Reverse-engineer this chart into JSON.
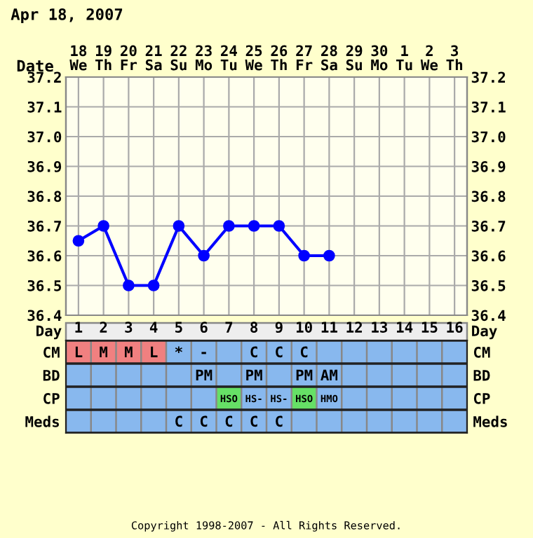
{
  "chart_data": [
    {
      "type": "line",
      "title": "Apr 18, 2007",
      "xlabel": "Date",
      "categories": [
        "18\nWe",
        "19\nTh",
        "20\nFr",
        "21\nSa",
        "22\nSu",
        "23\nMo",
        "24\nTu",
        "25\nWe",
        "26\nTh",
        "27\nFr",
        "28\nSa",
        "29\nSu",
        "30\nMo",
        "1\nTu",
        "2\nWe",
        "3\nTh"
      ],
      "series": [
        {
          "color": "#0000ff",
          "values": [
            36.65,
            36.7,
            36.5,
            36.5,
            36.7,
            36.6,
            36.7,
            36.7,
            36.7,
            36.6,
            36.6,
            null,
            null,
            null,
            null,
            null
          ]
        }
      ],
      "ylim": [
        36.4,
        37.2
      ],
      "yticks": [
        {
          "value": 36.4,
          "label": "36.4"
        },
        {
          "value": 36.5,
          "label": "36.5"
        },
        {
          "value": 36.6,
          "label": "36.6"
        },
        {
          "value": 36.7,
          "label": "36.7"
        },
        {
          "value": 36.8,
          "label": "36.8"
        },
        {
          "value": 36.9,
          "label": "36.9"
        },
        {
          "value": 37.0,
          "label": "37.0"
        },
        {
          "value": 37.1,
          "label": "37.1"
        },
        {
          "value": 37.2,
          "label": "37.2"
        }
      ],
      "y2lim": [
        36.4,
        37.2
      ],
      "y2ticks": [
        {
          "value": 36.4,
          "label": "36.4"
        },
        {
          "value": 36.5,
          "label": "36.5"
        },
        {
          "value": 36.6,
          "label": "36.6"
        },
        {
          "value": 36.7,
          "label": "36.7"
        },
        {
          "value": 36.8,
          "label": "36.8"
        },
        {
          "value": 36.9,
          "label": "36.9"
        },
        {
          "value": 37.0,
          "label": "37.0"
        },
        {
          "value": 37.1,
          "label": "37.1"
        },
        {
          "value": 37.2,
          "label": "37.2"
        }
      ],
      "grid": true,
      "marker": "circle",
      "line_style": "solid",
      "legend": false
    },
    {
      "type": "heatmap",
      "xlabel": "Day",
      "categories": [
        "1",
        "2",
        "3",
        "4",
        "5",
        "6",
        "7",
        "8",
        "9",
        "10",
        "11",
        "12",
        "13",
        "14",
        "15",
        "16"
      ],
      "y_categories": [
        "CM",
        "BD",
        "CP",
        "Meds"
      ],
      "y2_categories": [
        "CM",
        "BD",
        "CP",
        "Meds"
      ],
      "colors": [
        [
          "#f08080",
          "#f08080",
          "#f08080",
          "#f08080",
          "#88b8ee",
          "#88b8ee",
          "#88b8ee",
          "#88b8ee",
          "#88b8ee",
          "#88b8ee",
          "#88b8ee",
          "#88b8ee",
          "#88b8ee",
          "#88b8ee",
          "#88b8ee",
          "#88b8ee"
        ],
        [
          "#88b8ee",
          "#88b8ee",
          "#88b8ee",
          "#88b8ee",
          "#88b8ee",
          "#88b8ee",
          "#88b8ee",
          "#88b8ee",
          "#88b8ee",
          "#88b8ee",
          "#88b8ee",
          "#88b8ee",
          "#88b8ee",
          "#88b8ee",
          "#88b8ee",
          "#88b8ee"
        ],
        [
          "#88b8ee",
          "#88b8ee",
          "#88b8ee",
          "#88b8ee",
          "#88b8ee",
          "#88b8ee",
          "#66e066",
          "#88b8ee",
          "#88b8ee",
          "#66e066",
          "#88b8ee",
          "#88b8ee",
          "#88b8ee",
          "#88b8ee",
          "#88b8ee",
          "#88b8ee"
        ],
        [
          "#88b8ee",
          "#88b8ee",
          "#88b8ee",
          "#88b8ee",
          "#88b8ee",
          "#88b8ee",
          "#88b8ee",
          "#88b8ee",
          "#88b8ee",
          "#88b8ee",
          "#88b8ee",
          "#88b8ee",
          "#88b8ee",
          "#88b8ee",
          "#88b8ee",
          "#88b8ee"
        ]
      ],
      "cells": [
        [
          null,
          null,
          null,
          null,
          null,
          null,
          null,
          null,
          null,
          null,
          null,
          null,
          null,
          null,
          null,
          null
        ],
        [
          null,
          null,
          null,
          null,
          null,
          null,
          null,
          null,
          null,
          null,
          null,
          null,
          null,
          null,
          null,
          null
        ],
        [
          null,
          null,
          null,
          null,
          null,
          null,
          null,
          null,
          null,
          null,
          null,
          null,
          null,
          null,
          null,
          null
        ],
        [
          null,
          null,
          null,
          null,
          null,
          null,
          null,
          null,
          null,
          null,
          null,
          null,
          null,
          null,
          null,
          null
        ]
      ],
      "cell_labels": [
        [
          "L",
          "M",
          "M",
          "L",
          "*",
          "-",
          null,
          "C",
          "C",
          "C",
          null,
          null,
          null,
          null,
          null,
          null
        ],
        [
          null,
          null,
          null,
          null,
          null,
          "PM",
          null,
          "PM",
          null,
          "PM",
          "AM",
          null,
          null,
          null,
          null,
          null
        ],
        [
          null,
          null,
          null,
          null,
          null,
          null,
          "HSO",
          "HS-",
          "HS-",
          "HSO",
          "HMO",
          null,
          null,
          null,
          null,
          null
        ],
        [
          null,
          null,
          null,
          null,
          "C",
          "C",
          "C",
          "C",
          "C",
          null,
          null,
          null,
          null,
          null,
          null,
          null
        ]
      ],
      "annotations": [
        "Copyright 1998-2007 - All Rights Reserved."
      ]
    }
  ]
}
